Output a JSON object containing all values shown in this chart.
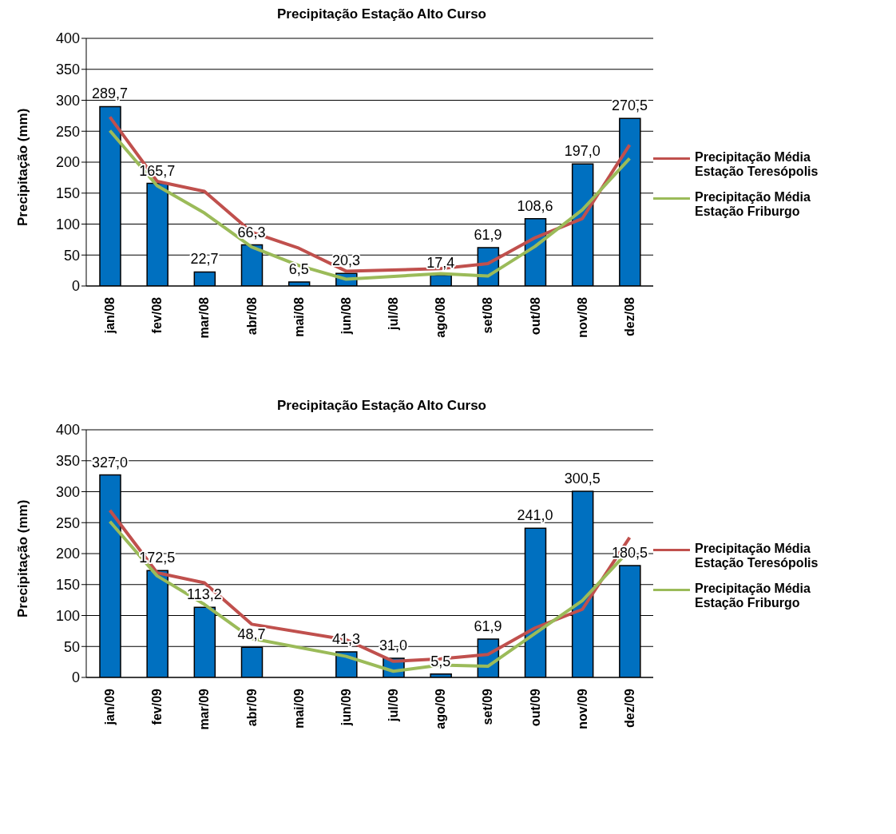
{
  "chart_data": [
    {
      "type": "bar",
      "title": "Precipitação Estação Alto Curso",
      "ylabel": "Precipitação (mm)",
      "categories": [
        "jan/08",
        "fev/08",
        "mar/08",
        "abr/08",
        "mai/08",
        "jun/08",
        "jul/08",
        "ago/08",
        "set/08",
        "out/08",
        "nov/08",
        "dez/08"
      ],
      "ylim": [
        0,
        400
      ],
      "yticks": [
        0,
        50,
        100,
        150,
        200,
        250,
        300,
        350,
        400
      ],
      "grid": "y",
      "legend": "right",
      "marker": "none",
      "series": [
        {
          "color": "#0070c0",
          "values": [
            289.7,
            165.7,
            22.7,
            66.3,
            6.5,
            20.3,
            null,
            17.4,
            61.9,
            108.6,
            197.0,
            270.5
          ],
          "value_labels": [
            "289,7",
            "165,7",
            "22,7",
            "66,3",
            "6,5",
            "20,3",
            null,
            "17,4",
            "61,9",
            "108,6",
            "197,0",
            "270,5"
          ]
        },
        {
          "type": "line",
          "name": "Precipitação Média Estação Teresópolis",
          "color": "#c0504d",
          "values": [
            273,
            169,
            153,
            87,
            61,
            24,
            null,
            28,
            36,
            78,
            109,
            228
          ]
        },
        {
          "type": "line",
          "name": "Precipitação Média Estação Friburgo",
          "color": "#9bbb59",
          "values": [
            251,
            162,
            118,
            63,
            33,
            11,
            null,
            20,
            16,
            64,
            123,
            206
          ]
        }
      ]
    },
    {
      "type": "bar",
      "title": "Precipitação Estação Alto Curso",
      "ylabel": "Precipitação (mm)",
      "categories": [
        "jan/09",
        "fev/09",
        "mar/09",
        "abr/09",
        "mai/09",
        "jun/09",
        "jul/09",
        "ago/09",
        "set/09",
        "out/09",
        "nov/09",
        "dez/09"
      ],
      "ylim": [
        0,
        400
      ],
      "yticks": [
        0,
        50,
        100,
        150,
        200,
        250,
        300,
        350,
        400
      ],
      "grid": "y",
      "legend": "right",
      "marker": "none",
      "series": [
        {
          "color": "#0070c0",
          "values": [
            327.0,
            172.5,
            113.2,
            48.7,
            null,
            41.3,
            31.0,
            5.5,
            61.9,
            241.0,
            300.5,
            180.5
          ],
          "value_labels": [
            "327,0",
            "172,5",
            "113,2",
            "48,7",
            null,
            "41,3",
            "31,0",
            "5,5",
            "61,9",
            "241,0",
            "300,5",
            "180,5"
          ]
        },
        {
          "type": "line",
          "name": "Precipitação Média Estação Teresópolis",
          "color": "#c0504d",
          "values": [
            270,
            169,
            153,
            86,
            null,
            61,
            26,
            30,
            37,
            80,
            110,
            226
          ]
        },
        {
          "type": "line",
          "name": "Precipitação Média Estação Friburgo",
          "color": "#9bbb59",
          "values": [
            252,
            164,
            118,
            63,
            null,
            34,
            10,
            20,
            18,
            71,
            124,
            206
          ]
        }
      ]
    }
  ]
}
